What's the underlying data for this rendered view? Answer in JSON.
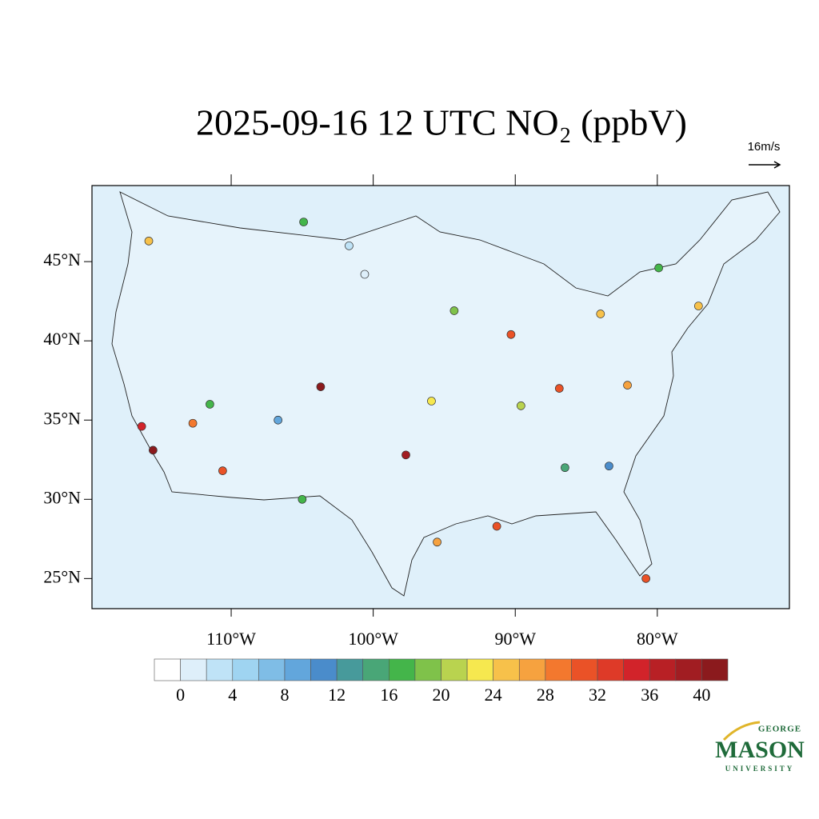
{
  "chart_data": {
    "type": "map",
    "title": "2025-09-16 12 UTC NO₂ (ppbV)",
    "reference_vector": "16m/s",
    "xlim": [
      -119.8,
      -70.7
    ],
    "ylim": [
      23.1,
      49.8
    ],
    "xticks": [
      {
        "value": -110,
        "label": "110°W"
      },
      {
        "value": -100,
        "label": "100°W"
      },
      {
        "value": -90,
        "label": "90°W"
      },
      {
        "value": -80,
        "label": "80°W"
      }
    ],
    "yticks": [
      {
        "value": 45,
        "label": "45°N"
      },
      {
        "value": 40,
        "label": "40°N"
      },
      {
        "value": 35,
        "label": "35°N"
      },
      {
        "value": 30,
        "label": "30°N"
      },
      {
        "value": 25,
        "label": "25°N"
      }
    ],
    "colorbar": {
      "levels": [
        0,
        2,
        4,
        6,
        8,
        10,
        12,
        14,
        16,
        18,
        20,
        22,
        24,
        26,
        28,
        30,
        32,
        34,
        36,
        38,
        40
      ],
      "colors": [
        "#ffffff",
        "#deeffa",
        "#bfe3f7",
        "#9fd4f1",
        "#7fbde6",
        "#62a6dc",
        "#4a8ccb",
        "#479a9b",
        "#49a677",
        "#44b54a",
        "#7fc24a",
        "#b9d34f",
        "#f6e84f",
        "#f7c14a",
        "#f6a23f",
        "#f3782e",
        "#ea5227",
        "#de3a28",
        "#d2232a",
        "#b82025",
        "#a11d22",
        "#8b1a1d"
      ],
      "ticks": [
        0,
        4,
        8,
        12,
        16,
        20,
        24,
        28,
        32,
        36,
        40
      ]
    },
    "stations": [
      {
        "lon": -115.5,
        "lat": 33.1,
        "value": 40
      },
      {
        "lon": -116.3,
        "lat": 34.6,
        "value": 34
      },
      {
        "lon": -103.7,
        "lat": 37.1,
        "value": 40
      },
      {
        "lon": -90.3,
        "lat": 40.4,
        "value": 30
      },
      {
        "lon": -97.7,
        "lat": 32.8,
        "value": 38
      },
      {
        "lon": -95.5,
        "lat": 27.3,
        "value": 26
      },
      {
        "lon": -110.6,
        "lat": 31.8,
        "value": 30
      },
      {
        "lon": -112.7,
        "lat": 34.8,
        "value": 28
      },
      {
        "lon": -80.8,
        "lat": 25.0,
        "value": 30
      },
      {
        "lon": -82.1,
        "lat": 37.2,
        "value": 26
      },
      {
        "lon": -86.9,
        "lat": 37.0,
        "value": 30
      },
      {
        "lon": -84.0,
        "lat": 41.7,
        "value": 24
      },
      {
        "lon": -94.3,
        "lat": 41.9,
        "value": 18
      },
      {
        "lon": -79.9,
        "lat": 44.6,
        "value": 16
      },
      {
        "lon": -104.9,
        "lat": 47.5,
        "value": 16
      },
      {
        "lon": -101.7,
        "lat": 46.0,
        "value": 2
      },
      {
        "lon": -100.6,
        "lat": 44.2,
        "value": 0
      },
      {
        "lon": -77.1,
        "lat": 42.2,
        "value": 24
      },
      {
        "lon": -115.8,
        "lat": 46.3,
        "value": 24
      },
      {
        "lon": -91.3,
        "lat": 28.3,
        "value": 30
      },
      {
        "lon": -111.5,
        "lat": 36.0,
        "value": 16
      },
      {
        "lon": -105.0,
        "lat": 30.0,
        "value": 16
      },
      {
        "lon": -83.4,
        "lat": 32.1,
        "value": 10
      },
      {
        "lon": -86.5,
        "lat": 32.0,
        "value": 14
      },
      {
        "lon": -95.9,
        "lat": 36.2,
        "value": 22
      },
      {
        "lon": -89.6,
        "lat": 35.9,
        "value": 20
      },
      {
        "lon": -106.7,
        "lat": 35.0,
        "value": 8
      }
    ]
  },
  "logo": {
    "top": "GEORGE",
    "name": "MASON",
    "bottom": "UNIVERSITY"
  }
}
